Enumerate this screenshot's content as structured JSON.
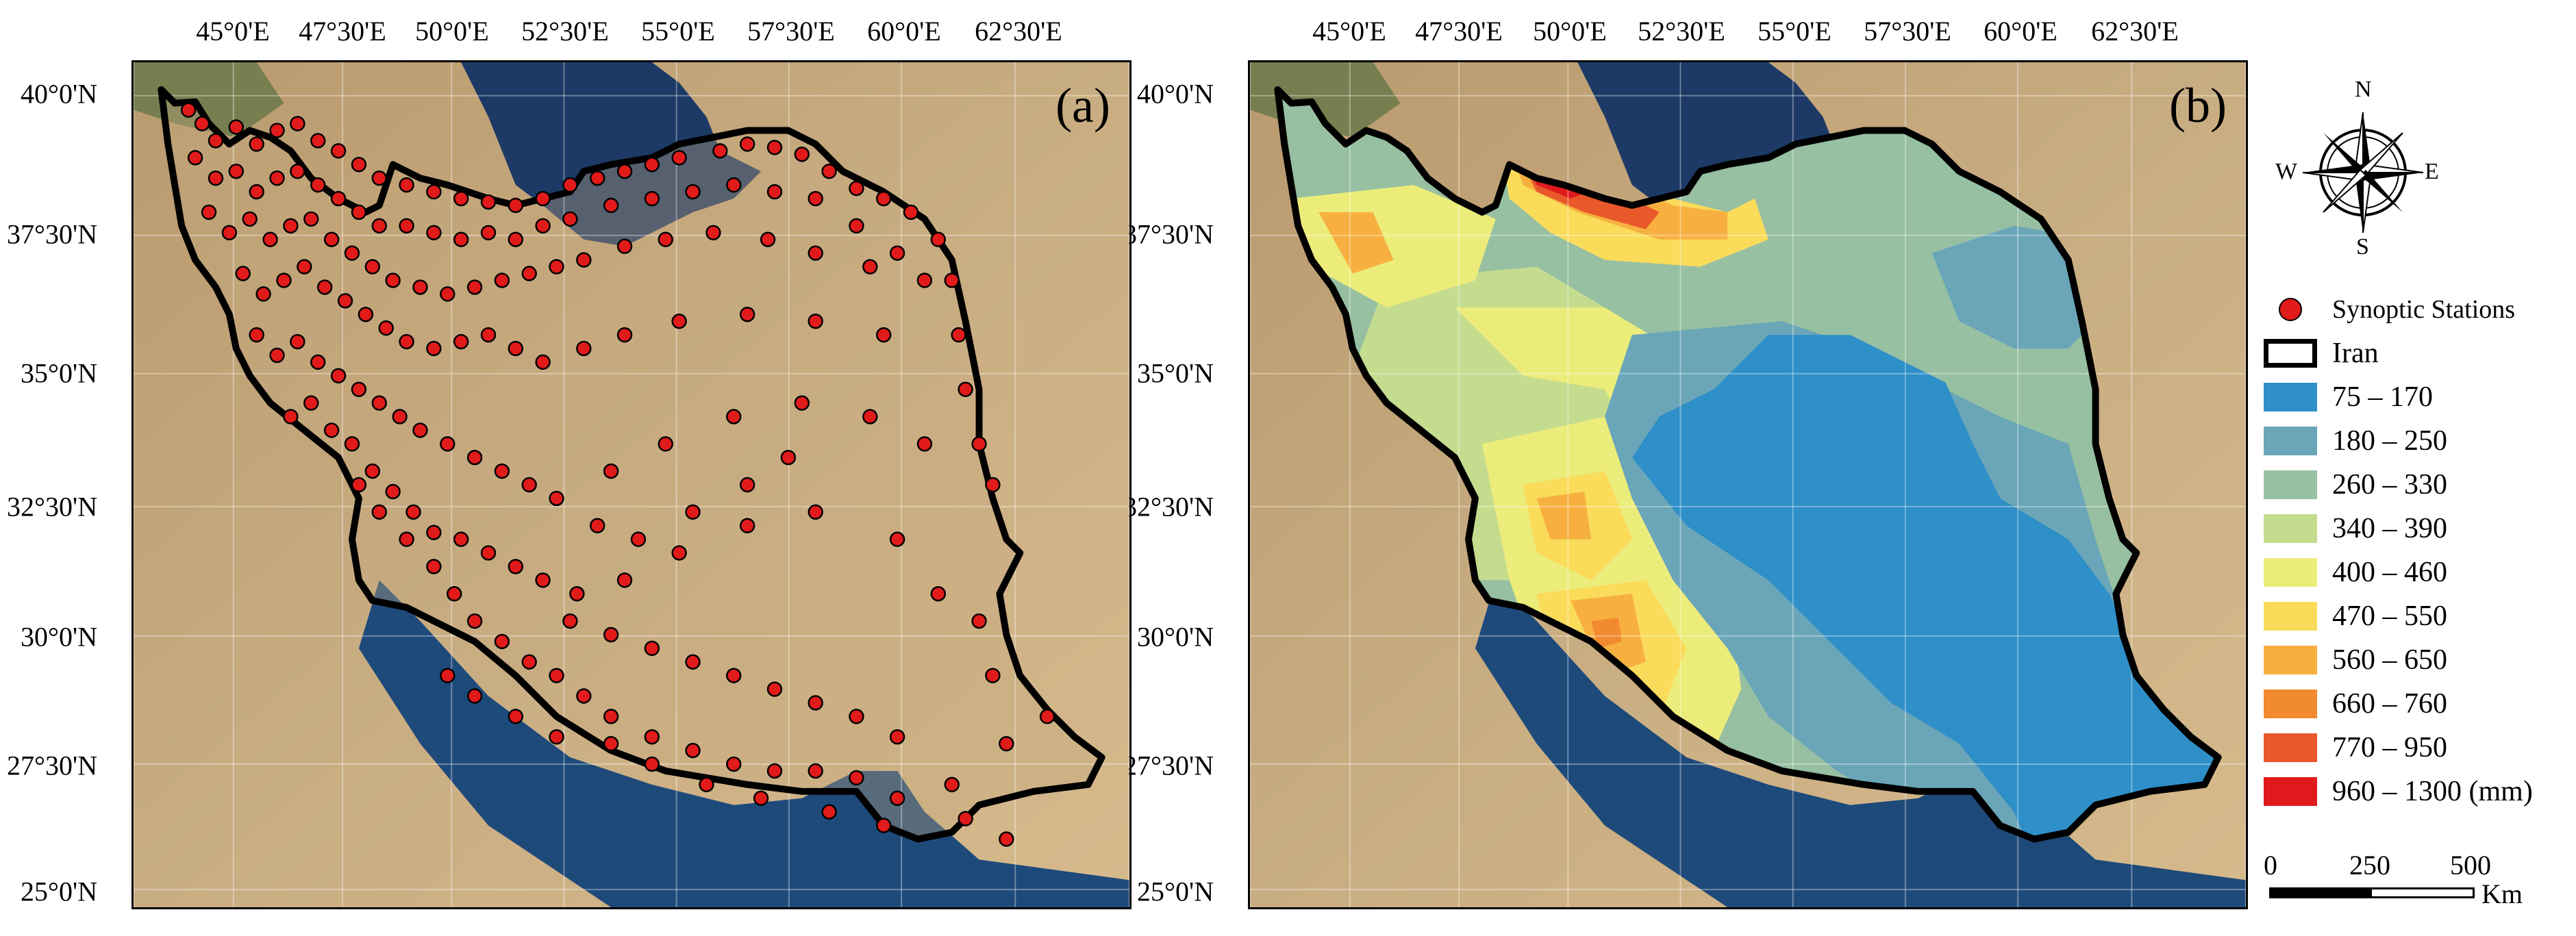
{
  "lon_ticks": [
    "45°0'E",
    "47°30'E",
    "50°0'E",
    "52°30'E",
    "55°0'E",
    "57°30'E",
    "60°0'E",
    "62°30'E"
  ],
  "lat_ticks": [
    "40°0'N",
    "37°30'N",
    "35°0'N",
    "32°30'N",
    "30°0'N",
    "27°30'N",
    "25°0'N"
  ],
  "panels": {
    "a": "(a)",
    "b": "(b)"
  },
  "compass": {
    "n": "N",
    "s": "S",
    "e": "E",
    "w": "W"
  },
  "legend": {
    "stations": "Synoptic Stations",
    "border": "Iran",
    "classes": [
      {
        "label": "75 – 170",
        "color": "#2f8fc8"
      },
      {
        "label": "180 – 250",
        "color": "#6aa6b8"
      },
      {
        "label": "260 – 330",
        "color": "#97c0a2"
      },
      {
        "label": "340 – 390",
        "color": "#c4dc8e"
      },
      {
        "label": "400 – 460",
        "color": "#ecec7a"
      },
      {
        "label": "470 – 550",
        "color": "#fadb5a"
      },
      {
        "label": "560 – 650",
        "color": "#f7b040"
      },
      {
        "label": "660 – 760",
        "color": "#f28a30"
      },
      {
        "label": "770 – 950",
        "color": "#e9582a"
      },
      {
        "label": "960 – 1300 (mm)",
        "color": "#e01a1c"
      }
    ],
    "station_color": "#e11a1a"
  },
  "scalebar": {
    "labels": [
      "0",
      "250",
      "500"
    ],
    "unit": "Km"
  }
}
